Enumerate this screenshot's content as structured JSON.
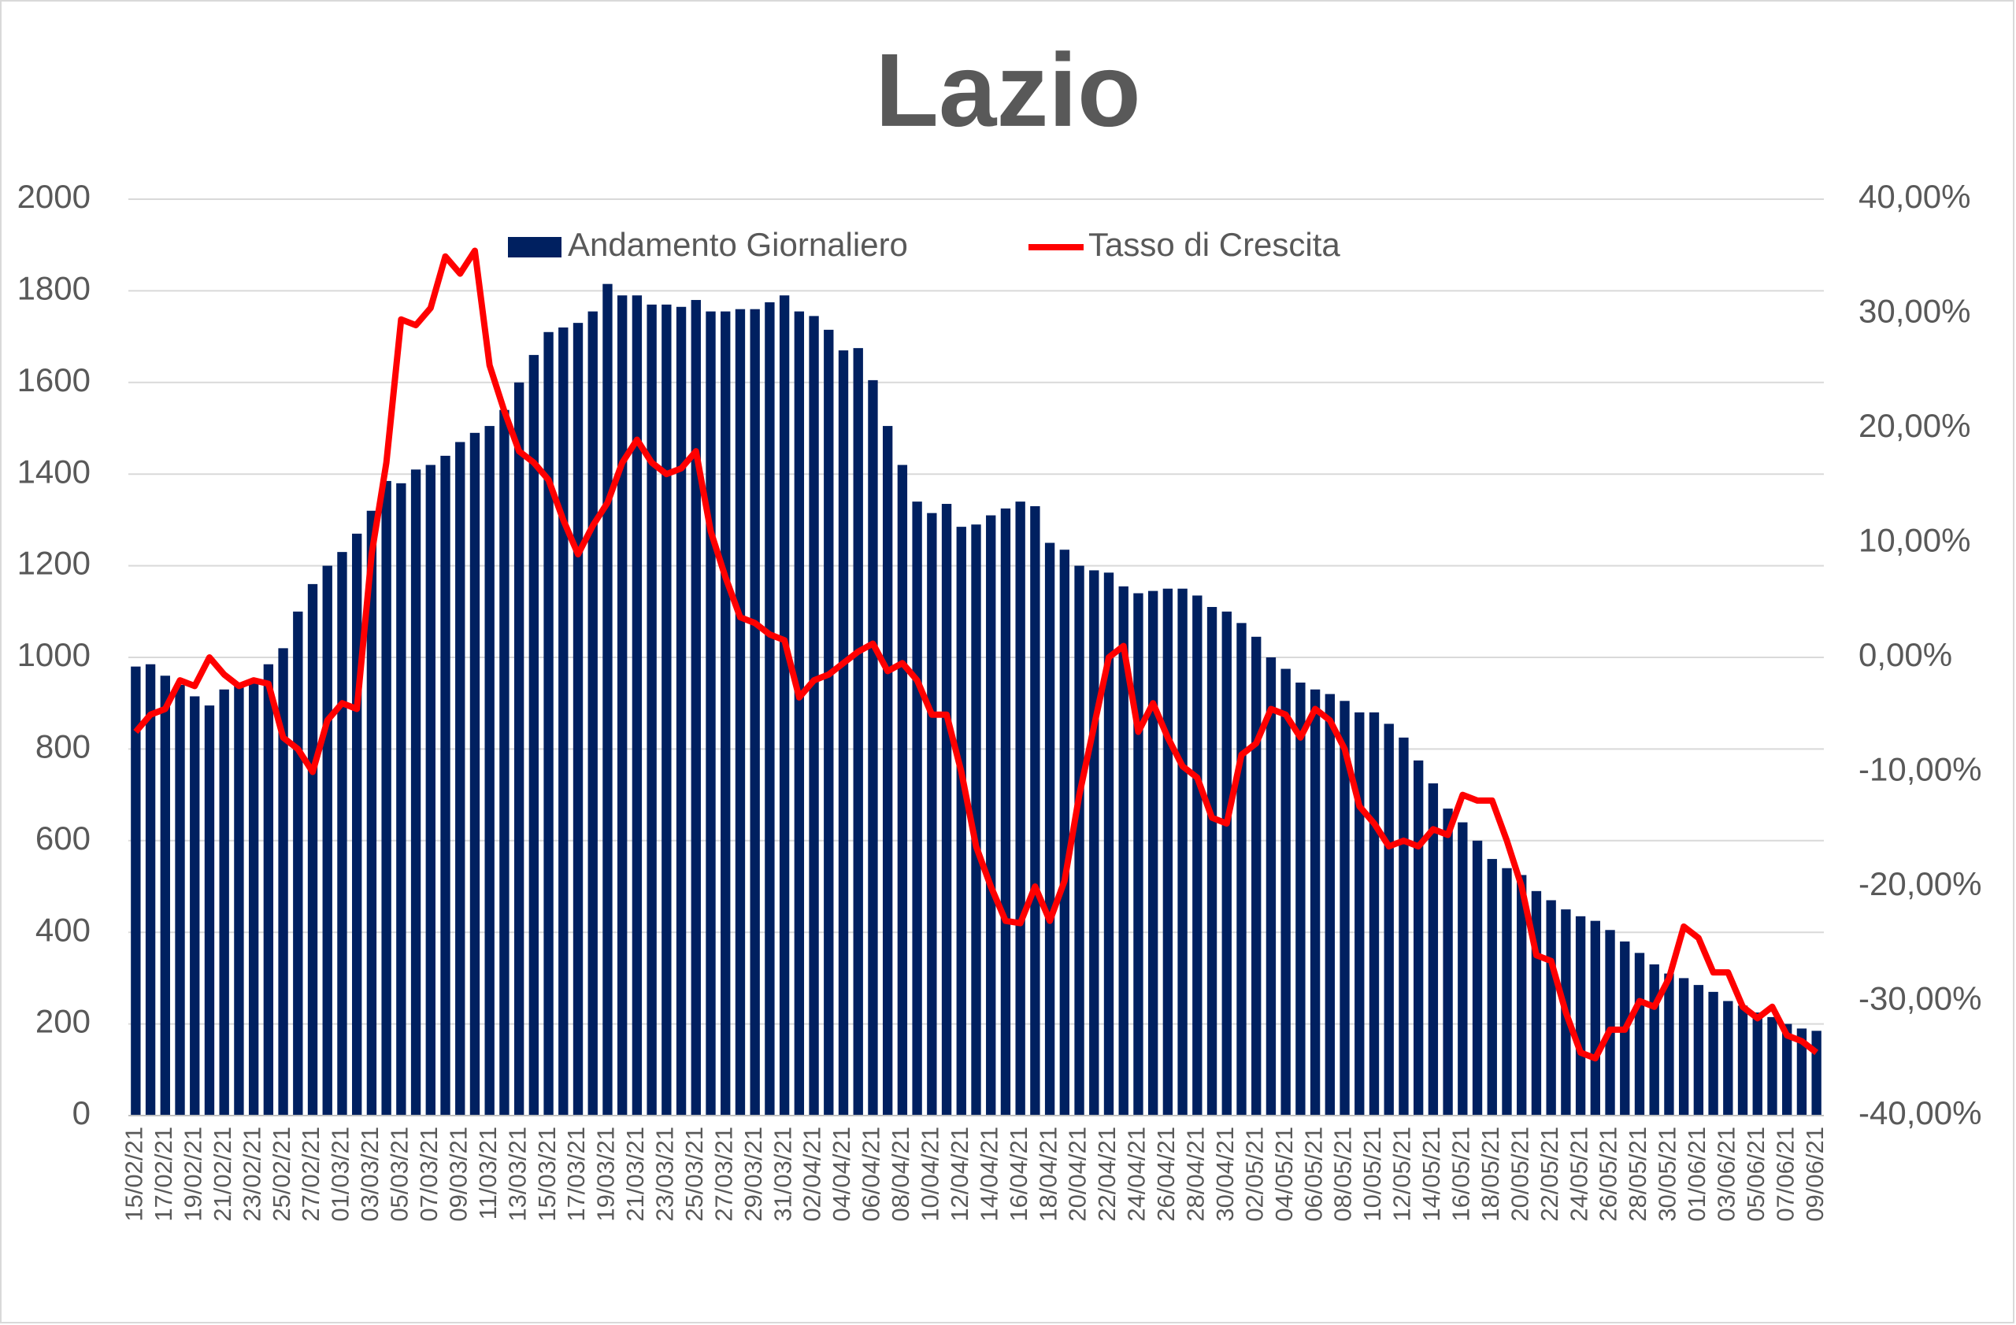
{
  "chart_data": {
    "type": "bar",
    "title": "Lazio",
    "categories": [
      "15/02/21",
      null,
      "17/02/21",
      null,
      "19/02/21",
      null,
      "21/02/21",
      null,
      "23/02/21",
      null,
      "25/02/21",
      null,
      "27/02/21",
      null,
      "01/03/21",
      null,
      "03/03/21",
      null,
      "05/03/21",
      null,
      "07/03/21",
      null,
      "09/03/21",
      null,
      "11/03/21",
      null,
      "13/03/21",
      null,
      "15/03/21",
      null,
      "17/03/21",
      null,
      "19/03/21",
      null,
      "21/03/21",
      null,
      "23/03/21",
      null,
      "25/03/21",
      null,
      "27/03/21",
      null,
      "29/03/21",
      null,
      "31/03/21",
      null,
      "02/04/21",
      null,
      "04/04/21",
      null,
      "06/04/21",
      null,
      "08/04/21",
      null,
      "10/04/21",
      null,
      "12/04/21",
      null,
      "14/04/21",
      null,
      "16/04/21",
      null,
      "18/04/21",
      null,
      "20/04/21",
      null,
      "22/04/21",
      null,
      "24/04/21",
      null,
      "26/04/21",
      null,
      "28/04/21",
      null,
      "30/04/21",
      null,
      "02/05/21",
      null,
      "04/05/21",
      null,
      "06/05/21",
      null,
      "08/05/21",
      null,
      "10/05/21",
      null,
      "12/05/21",
      null,
      "14/05/21",
      null,
      "16/05/21",
      null,
      "18/05/21",
      null,
      "20/05/21",
      null,
      "22/05/21",
      null,
      "24/05/21",
      null,
      "26/05/21",
      null,
      "28/05/21",
      null,
      "30/05/21",
      null,
      "01/06/21",
      null,
      "03/06/21",
      null,
      "05/06/21",
      null,
      "07/06/21",
      null,
      "09/06/21"
    ],
    "series": [
      {
        "name": "Andamento Giornaliero",
        "type": "bar",
        "color": "#002060",
        "values": [
          980,
          985,
          960,
          940,
          915,
          895,
          930,
          940,
          950,
          985,
          1020,
          1100,
          1160,
          1200,
          1230,
          1270,
          1320,
          1385,
          1380,
          1410,
          1420,
          1440,
          1470,
          1490,
          1505,
          1540,
          1600,
          1660,
          1710,
          1720,
          1730,
          1755,
          1815,
          1790,
          1790,
          1770,
          1770,
          1765,
          1780,
          1755,
          1755,
          1760,
          1760,
          1775,
          1790,
          1755,
          1745,
          1715,
          1670,
          1675,
          1605,
          1505,
          1420,
          1340,
          1315,
          1335,
          1285,
          1290,
          1310,
          1325,
          1340,
          1330,
          1250,
          1235,
          1200,
          1190,
          1185,
          1155,
          1140,
          1145,
          1150,
          1150,
          1135,
          1110,
          1100,
          1075,
          1045,
          1000,
          975,
          945,
          930,
          920,
          905,
          880,
          880,
          855,
          825,
          775,
          725,
          670,
          640,
          600,
          560,
          540,
          525,
          490,
          470,
          450,
          435,
          425,
          405,
          380,
          355,
          330,
          310,
          300,
          285,
          270,
          250,
          240,
          225,
          215,
          200,
          190,
          185
        ]
      },
      {
        "name": "Tasso di Crescita",
        "type": "line",
        "axis": "y2",
        "color": "#ff0000",
        "values": [
          -6.5,
          -5,
          -4.5,
          -2,
          -2.5,
          0,
          -1.5,
          -2.5,
          -2,
          -2.3,
          -7,
          -8,
          -10,
          -5.5,
          -4,
          -4.5,
          9,
          17,
          29.5,
          29,
          30.5,
          35,
          33.5,
          35.5,
          25.5,
          21.5,
          18,
          17,
          15.5,
          12,
          9,
          11.5,
          13.5,
          17,
          19,
          17,
          16,
          16.5,
          18,
          11,
          7,
          3.5,
          3,
          2,
          1.5,
          -3.5,
          -2,
          -1.5,
          -0.5,
          0.5,
          1.2,
          -1.2,
          -0.5,
          -2,
          -5,
          -5,
          -10,
          -16.5,
          -20,
          -23,
          -23.2,
          -20,
          -23,
          -19.5,
          -12,
          -6,
          0,
          1,
          -6.5,
          -4,
          -7,
          -9.5,
          -10.5,
          -14,
          -14.5,
          -8.5,
          -7.5,
          -4.5,
          -5,
          -7,
          -4.5,
          -5.5,
          -8,
          -13,
          -14.5,
          -16.5,
          -16,
          -16.5,
          -15,
          -15.5,
          -12,
          -12.5,
          -12.5,
          -16,
          -20,
          -26,
          -26.5,
          -31,
          -34.5,
          -35,
          -32.5,
          -32.5,
          -30,
          -30.5,
          -28,
          -23.5,
          -24.5,
          -27.5,
          -27.5,
          -30.5,
          -31.5,
          -30.5,
          -33,
          -33.5,
          -34.5
        ]
      }
    ],
    "ylim": [
      0,
      2000
    ],
    "yticks": [
      0,
      200,
      400,
      600,
      800,
      1000,
      1200,
      1400,
      1600,
      1800,
      2000
    ],
    "y2lim": [
      -40,
      40
    ],
    "y2ticks": [
      {
        "value": -40,
        "label": "-40,00%"
      },
      {
        "value": -30,
        "label": "-30,00%"
      },
      {
        "value": -20,
        "label": "-20,00%"
      },
      {
        "value": -10,
        "label": "-10,00%"
      },
      {
        "value": 0,
        "label": "0,00%"
      },
      {
        "value": 10,
        "label": "10,00%"
      },
      {
        "value": 20,
        "label": "20,00%"
      },
      {
        "value": 30,
        "label": "30,00%"
      },
      {
        "value": 40,
        "label": "40,00%"
      }
    ],
    "grid": true,
    "legend": "top"
  }
}
